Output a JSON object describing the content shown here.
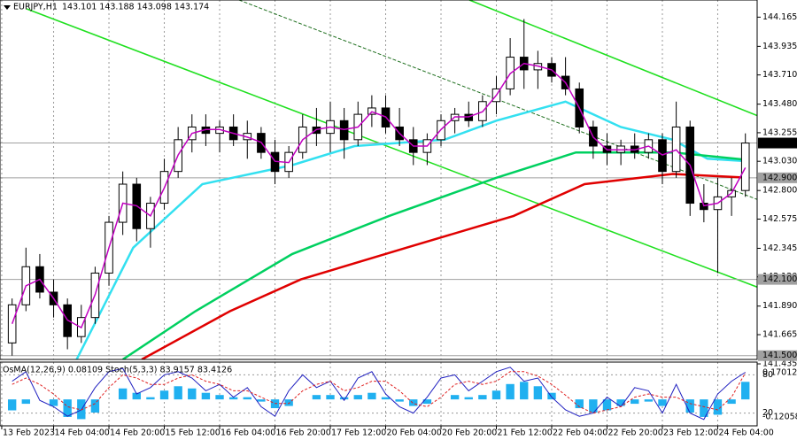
{
  "chart_data": {
    "type": "candlestick",
    "symbol": "EURJPY,H1",
    "quote": "143.101 143.188 143.098 143.174",
    "x": [
      16,
      20,
      24,
      28,
      32,
      36,
      40,
      44,
      48,
      52,
      56,
      60,
      64,
      68,
      72,
      76,
      80,
      84,
      88,
      92,
      96,
      100,
      104,
      108,
      112,
      116,
      120,
      124,
      128,
      132,
      136,
      140,
      144,
      148,
      152,
      156,
      160,
      164,
      168,
      172,
      176,
      180,
      184,
      188,
      192,
      196,
      200,
      204,
      208,
      212,
      216,
      220,
      224,
      228
    ],
    "open": [
      141.6,
      141.9,
      142.2,
      142.0,
      141.9,
      141.65,
      141.8,
      142.15,
      142.55,
      142.85,
      142.5,
      142.7,
      142.95,
      143.2,
      143.3,
      143.25,
      143.3,
      143.2,
      143.25,
      143.1,
      142.95,
      143.1,
      143.3,
      143.25,
      143.35,
      143.2,
      143.4,
      143.45,
      143.3,
      143.2,
      143.1,
      143.2,
      143.35,
      143.4,
      143.35,
      143.5,
      143.6,
      143.85,
      143.75,
      143.8,
      143.7,
      143.6,
      143.3,
      143.15,
      143.1,
      143.15,
      143.1,
      143.2,
      142.95,
      143.3,
      142.7,
      142.65,
      142.75,
      142.8
    ],
    "high": [
      141.95,
      142.35,
      142.3,
      142.1,
      141.95,
      141.9,
      142.2,
      142.6,
      142.95,
      142.9,
      142.75,
      143.05,
      143.3,
      143.4,
      143.4,
      143.35,
      143.4,
      143.35,
      143.3,
      143.2,
      143.15,
      143.4,
      143.45,
      143.5,
      143.45,
      143.5,
      143.55,
      143.55,
      143.45,
      143.3,
      143.25,
      143.4,
      143.45,
      143.5,
      143.55,
      143.7,
      144.0,
      144.15,
      143.9,
      143.85,
      143.85,
      143.65,
      143.35,
      143.25,
      143.2,
      143.25,
      143.25,
      143.25,
      143.5,
      143.35,
      142.85,
      142.9,
      142.9,
      143.25
    ],
    "low": [
      141.5,
      141.85,
      141.95,
      141.8,
      141.55,
      141.6,
      141.75,
      142.05,
      142.45,
      142.4,
      142.35,
      142.65,
      142.9,
      143.1,
      143.15,
      143.1,
      143.15,
      143.05,
      143.05,
      142.85,
      142.9,
      143.05,
      143.15,
      143.1,
      143.05,
      143.15,
      143.3,
      143.25,
      143.15,
      143.0,
      143.0,
      143.15,
      143.25,
      143.3,
      143.3,
      143.4,
      143.55,
      143.6,
      143.6,
      143.65,
      143.55,
      143.25,
      143.05,
      143.0,
      143.0,
      143.05,
      143.05,
      142.85,
      142.9,
      142.6,
      142.55,
      142.15,
      142.6,
      142.75
    ],
    "close": [
      141.9,
      142.2,
      142.0,
      141.9,
      141.65,
      141.8,
      142.15,
      142.55,
      142.85,
      142.5,
      142.7,
      142.95,
      143.2,
      143.3,
      143.25,
      143.3,
      143.2,
      143.25,
      143.1,
      142.95,
      143.1,
      143.3,
      143.25,
      143.35,
      143.2,
      143.4,
      143.45,
      143.3,
      143.2,
      143.1,
      143.2,
      143.35,
      143.4,
      143.35,
      143.5,
      143.6,
      143.85,
      143.75,
      143.8,
      143.7,
      143.6,
      143.3,
      143.15,
      143.1,
      143.15,
      143.1,
      143.2,
      142.95,
      143.3,
      142.7,
      142.65,
      142.75,
      142.8,
      143.174
    ],
    "up_color": "#ffffff",
    "down_color": "#000000",
    "xlim": [
      12.5,
      231.4
    ],
    "ylim": [
      141.47,
      144.3
    ],
    "xgrid": true,
    "xticks": [
      {
        "value": 13,
        "label": "13 Feb 2023"
      },
      {
        "value": 28,
        "label": "14 Feb 04:00"
      },
      {
        "value": 44,
        "label": "14 Feb 20:00"
      },
      {
        "value": 60,
        "label": "15 Feb 12:00"
      },
      {
        "value": 76,
        "label": "16 Feb 04:00"
      },
      {
        "value": 92,
        "label": "16 Feb 20:00"
      },
      {
        "value": 108,
        "label": "17 Feb 12:00"
      },
      {
        "value": 124,
        "label": "20 Feb 04:00"
      },
      {
        "value": 140,
        "label": "20 Feb 20:00"
      },
      {
        "value": 156,
        "label": "21 Feb 12:00"
      },
      {
        "value": 172,
        "label": "22 Feb 04:00"
      },
      {
        "value": 188,
        "label": "22 Feb 20:00"
      },
      {
        "value": 204,
        "label": "23 Feb 12:00"
      },
      {
        "value": 220,
        "label": "24 Feb 04:00"
      }
    ],
    "yticks": [
      144.165,
      143.935,
      {
        "value": 143.71,
        "label": "143.710"
      },
      {
        "value": 143.48,
        "label": "143.480"
      },
      143.255,
      {
        "value": 143.03,
        "label": "143.030"
      },
      {
        "value": 142.8,
        "label": "142.800"
      },
      142.575,
      142.345,
      {
        "value": 142.12,
        "label": "142.120"
      },
      {
        "value": 141.89,
        "label": "141.890"
      },
      141.665,
      141.435
    ],
    "fast_line": {
      "color": "#c000c0",
      "values": [
        141.75,
        142.05,
        142.1,
        141.95,
        141.78,
        141.72,
        141.98,
        142.35,
        142.7,
        142.68,
        142.6,
        142.82,
        143.08,
        143.25,
        143.28,
        143.28,
        143.25,
        143.22,
        143.18,
        143.03,
        143.02,
        143.2,
        143.28,
        143.3,
        143.28,
        143.3,
        143.42,
        143.38,
        143.25,
        143.15,
        143.15,
        143.28,
        143.38,
        143.38,
        143.42,
        143.55,
        143.72,
        143.8,
        143.78,
        143.75,
        143.65,
        143.45,
        143.22,
        143.12,
        143.12,
        143.12,
        143.15,
        143.08,
        143.12,
        143.0,
        142.68,
        142.7,
        142.78,
        142.98
      ]
    },
    "lines": [
      {
        "color": "#33e0f0",
        "x": [
          34.3,
          51,
          71,
          97,
          115,
          141,
          156,
          176,
          192,
          207,
          217,
          229
        ],
        "values": [
          141.45,
          142.35,
          142.85,
          143.0,
          143.15,
          143.2,
          143.35,
          143.5,
          143.3,
          143.2,
          143.05,
          143.03
        ]
      },
      {
        "color": "#00d060",
        "x": [
          48,
          69,
          97,
          125,
          156,
          179,
          207,
          229
        ],
        "values": [
          141.47,
          141.85,
          142.3,
          142.6,
          142.9,
          143.1,
          143.1,
          143.04
        ]
      },
      {
        "color": "#e00000",
        "x": [
          53.5,
          79,
          99.5,
          130,
          161,
          181.5,
          207,
          229
        ],
        "values": [
          141.47,
          141.85,
          142.1,
          142.35,
          142.6,
          142.85,
          142.93,
          142.9
        ]
      }
    ],
    "trendlines": [
      {
        "color": "#20e020",
        "x": [
          20.2,
          231.4
        ],
        "values": [
          144.23,
          142.04
        ]
      },
      {
        "color": "#20e020",
        "x": [
          148.2,
          231.4
        ],
        "values": [
          144.3,
          143.39
        ]
      },
      {
        "color": "#207020",
        "x": [
          81.6,
          231.4
        ],
        "values": [
          144.3,
          142.73
        ]
      }
    ],
    "levels": [
      143.174,
      {
        "value": 142.9,
        "label": "142.900"
      },
      {
        "value": 142.1,
        "label": "142.100"
      },
      {
        "value": 141.5,
        "label": "141.500"
      }
    ],
    "indicator": {
      "title": "OsMA(12,26,9) 0.08109 Stoch(5,3,3) 83.9157 83.4126",
      "osma_color": "#20b0f0",
      "osma_lim": [
        -0.12058,
        0.17012
      ],
      "osma": [
        -0.05,
        -0.02,
        0.0,
        -0.03,
        -0.08,
        -0.09,
        -0.06,
        0.0,
        0.05,
        0.03,
        0.01,
        0.04,
        0.06,
        0.05,
        0.03,
        0.02,
        0.01,
        0.01,
        -0.01,
        -0.04,
        -0.03,
        0.0,
        0.02,
        0.02,
        0.01,
        0.02,
        0.03,
        0.01,
        -0.01,
        -0.03,
        -0.02,
        0.0,
        0.02,
        0.01,
        0.02,
        0.04,
        0.07,
        0.08,
        0.06,
        0.03,
        0.0,
        -0.04,
        -0.06,
        -0.05,
        -0.03,
        -0.02,
        -0.01,
        -0.03,
        0.0,
        -0.06,
        -0.08,
        -0.07,
        -0.02,
        0.08
      ],
      "stoch_lim": [
        0,
        100
      ],
      "stoch_ticks": [
        80,
        20
      ],
      "stoch_main_color": "#2020c0",
      "stoch_main": [
        70,
        85,
        40,
        30,
        15,
        25,
        60,
        85,
        90,
        50,
        60,
        80,
        85,
        75,
        55,
        65,
        45,
        60,
        30,
        15,
        55,
        80,
        60,
        70,
        40,
        75,
        85,
        50,
        30,
        20,
        45,
        75,
        80,
        55,
        70,
        85,
        92,
        70,
        75,
        45,
        25,
        15,
        20,
        45,
        30,
        60,
        55,
        20,
        65,
        20,
        10,
        50,
        70,
        84
      ],
      "stoch_signal_color": "#e02020",
      "stoch_signal": [
        65,
        75,
        65,
        50,
        30,
        25,
        35,
        60,
        80,
        75,
        65,
        65,
        75,
        80,
        70,
        65,
        55,
        55,
        45,
        35,
        35,
        55,
        65,
        70,
        55,
        60,
        70,
        70,
        55,
        35,
        30,
        45,
        65,
        70,
        65,
        70,
        85,
        85,
        78,
        65,
        48,
        30,
        20,
        25,
        30,
        45,
        50,
        45,
        45,
        35,
        30,
        25,
        45,
        83
      ]
    }
  }
}
